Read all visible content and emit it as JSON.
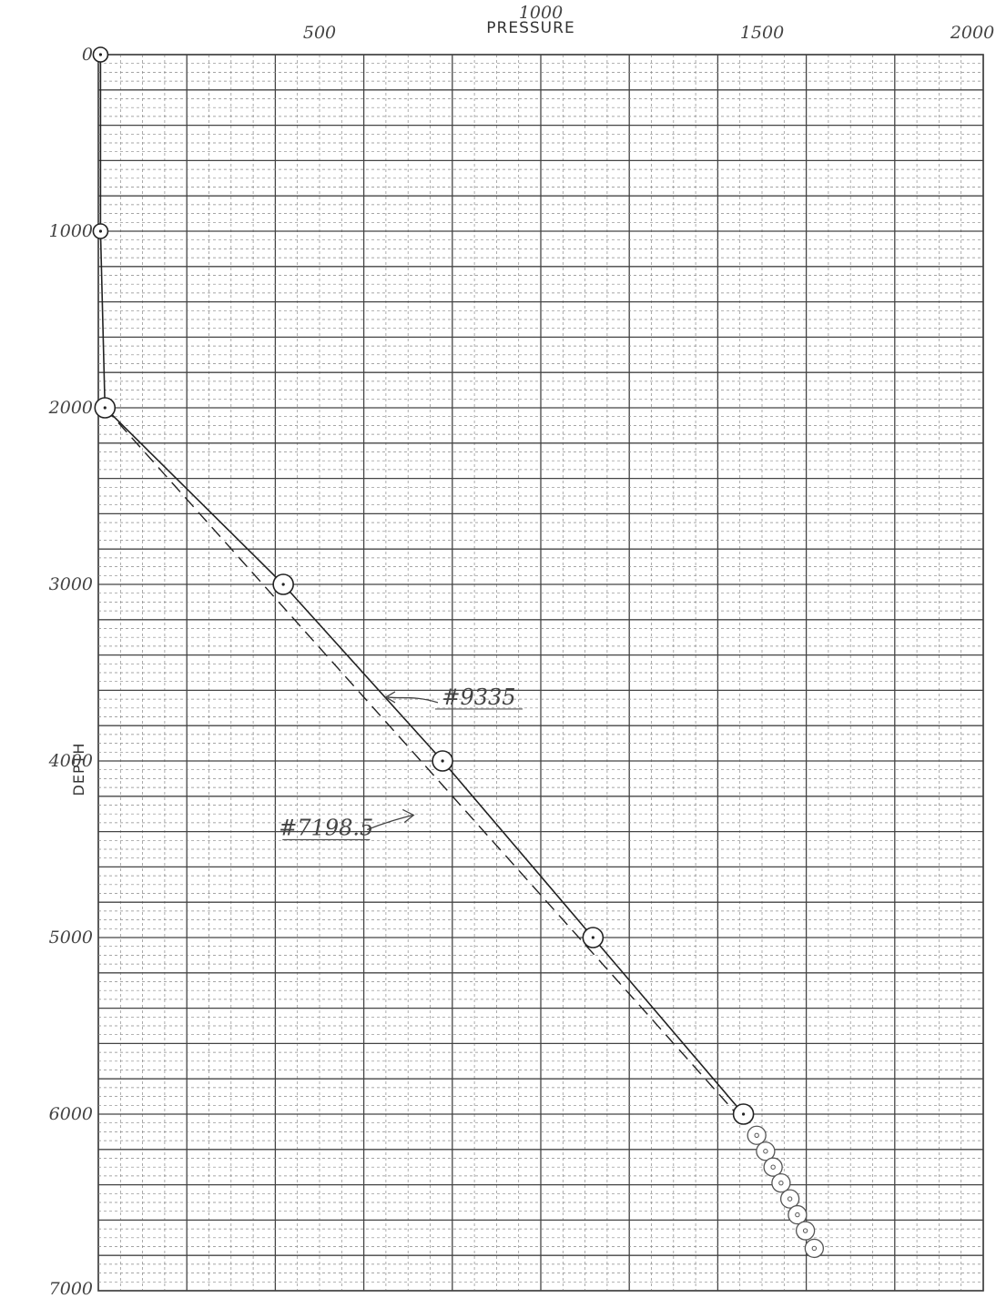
{
  "chart_data": {
    "type": "line",
    "title": "",
    "xlabel": "PRESSURE",
    "ylabel": "DEPTH",
    "xlim": [
      0,
      2000
    ],
    "ylim": [
      0,
      7000
    ],
    "y_inverted": true,
    "x_axis_position": "top",
    "grid": true,
    "x_tick_labels": [
      "500",
      "1000",
      "1500",
      "2000"
    ],
    "x_tick_values": [
      500,
      1000,
      1500,
      2000
    ],
    "y_tick_labels": [
      "0",
      "1000",
      "2000",
      "3000",
      "4000",
      "5000",
      "6000",
      "7000"
    ],
    "y_tick_values": [
      0,
      1000,
      2000,
      3000,
      4000,
      5000,
      6000,
      7000
    ],
    "series": [
      {
        "name": "",
        "style": "solid",
        "marker": "circle",
        "points": [
          {
            "x": 5,
            "y": 0
          },
          {
            "x": 5,
            "y": 1000
          },
          {
            "x": 15,
            "y": 2000
          },
          {
            "x": 418,
            "y": 3000
          },
          {
            "x": 778,
            "y": 4000
          },
          {
            "x": 1118,
            "y": 5000
          },
          {
            "x": 1458,
            "y": 6000
          }
        ]
      },
      {
        "name": "",
        "style": "dashed",
        "marker": "none",
        "points": [
          {
            "x": 15,
            "y": 2000
          },
          {
            "x": 1443,
            "y": 6000
          }
        ]
      }
    ],
    "extra_markers": [
      {
        "x": 1488,
        "y": 6120
      },
      {
        "x": 1508,
        "y": 6210
      },
      {
        "x": 1525,
        "y": 6300
      },
      {
        "x": 1543,
        "y": 6390
      },
      {
        "x": 1563,
        "y": 6480
      },
      {
        "x": 1580,
        "y": 6570
      },
      {
        "x": 1598,
        "y": 6660
      },
      {
        "x": 1618,
        "y": 6760
      }
    ],
    "annotations": [
      {
        "text": "#9335",
        "x": 860,
        "y": 3680
      },
      {
        "text": "#7198.5",
        "x": 515,
        "y": 4420
      }
    ]
  }
}
